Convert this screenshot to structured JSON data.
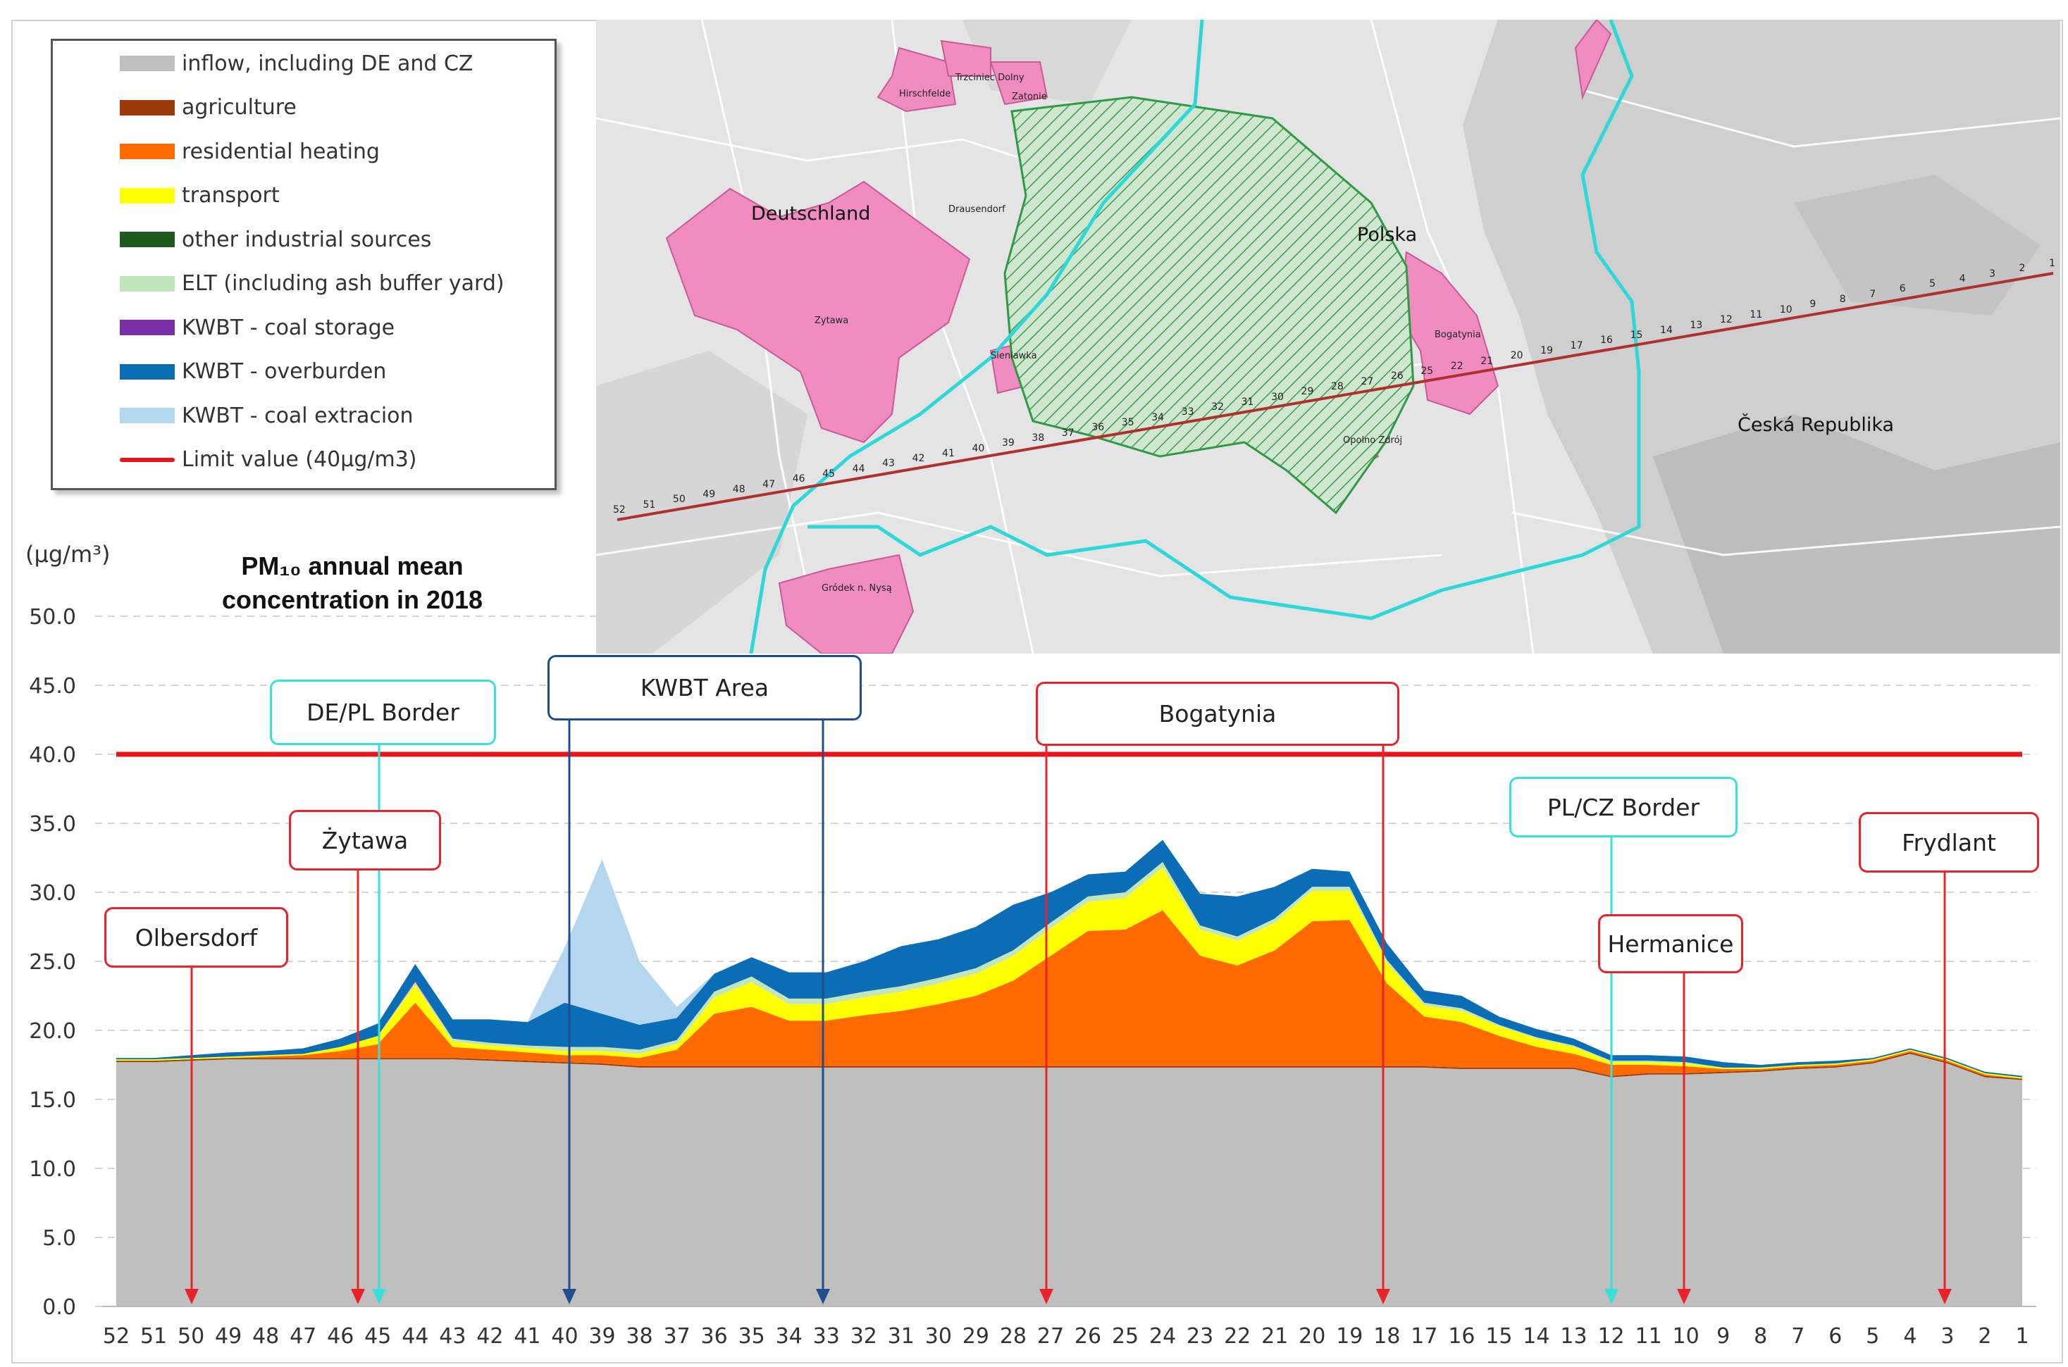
{
  "units": "(µg/m³)",
  "title": {
    "line1": "PM₁₀ annual mean",
    "line2": "concentration in 2018"
  },
  "legend": [
    {
      "label": "inflow, including DE and CZ",
      "color": "#bfbfbf",
      "kind": "area"
    },
    {
      "label": "agriculture",
      "color": "#9b3b0c",
      "kind": "area"
    },
    {
      "label": "residential heating",
      "color": "#ff6a00",
      "kind": "area"
    },
    {
      "label": "transport",
      "color": "#ffff00",
      "kind": "area"
    },
    {
      "label": "other industrial sources",
      "color": "#1e5a1e",
      "kind": "area"
    },
    {
      "label": "ELT (including ash buffer yard)",
      "color": "#c2e6bc",
      "kind": "area"
    },
    {
      "label": "KWBT - coal storage",
      "color": "#7b2fa6",
      "kind": "area"
    },
    {
      "label": "KWBT - overburden",
      "color": "#0b6db5",
      "kind": "area"
    },
    {
      "label": "KWBT - coal extracion",
      "color": "#b4d7ef",
      "kind": "area"
    },
    {
      "label": "Limit value (40µg/m3)",
      "color": "#e8141a",
      "kind": "line"
    }
  ],
  "callouts": [
    {
      "label": "Olbersdorf",
      "style": "red"
    },
    {
      "label": "Żytawa",
      "style": "red"
    },
    {
      "label": "DE/PL Border",
      "style": "cyan"
    },
    {
      "label": "KWBT Area",
      "style": "blue"
    },
    {
      "label": "Bogatynia",
      "style": "red"
    },
    {
      "label": "PL/CZ Border",
      "style": "cyan"
    },
    {
      "label": "Hermanice",
      "style": "red"
    },
    {
      "label": "Frydlant",
      "style": "red"
    }
  ],
  "map": {
    "labels": {
      "de": "Deutschland",
      "pl": "Polska",
      "cz": "Česká Republika"
    },
    "towns": [
      "Zytawa",
      "Sieniawka",
      "Hirschfelde",
      "Trzciniec Dolny",
      "Zatonie",
      "Drausendorf",
      "Bogatynia",
      "Opolno Zdrój",
      "Gródek n. Nysą"
    ],
    "route_points": [
      "52",
      "51",
      "50",
      "49",
      "48",
      "47",
      "46",
      "45",
      "44",
      "43",
      "42",
      "41",
      "40",
      "39",
      "38",
      "37",
      "36",
      "35",
      "34",
      "33",
      "32",
      "31",
      "30",
      "29",
      "28",
      "27",
      "26",
      "25",
      "22",
      "21",
      "20",
      "19",
      "17",
      "16",
      "15",
      "14",
      "13",
      "12",
      "11",
      "10",
      "9",
      "8",
      "7",
      "6",
      "5",
      "4",
      "3",
      "2",
      "1"
    ]
  },
  "chart_data": {
    "type": "area",
    "stacked": true,
    "categories": [
      "52",
      "51",
      "50",
      "49",
      "48",
      "47",
      "46",
      "45",
      "44",
      "43",
      "42",
      "41",
      "40",
      "39",
      "38",
      "37",
      "36",
      "35",
      "34",
      "33",
      "32",
      "31",
      "30",
      "29",
      "28",
      "27",
      "26",
      "25",
      "24",
      "23",
      "22",
      "21",
      "20",
      "19",
      "18",
      "17",
      "16",
      "15",
      "14",
      "13",
      "12",
      "11",
      "10",
      "9",
      "8",
      "7",
      "6",
      "5",
      "4",
      "3",
      "2",
      "1"
    ],
    "ylim": [
      0,
      50
    ],
    "yticks": [
      "0.0",
      "5.0",
      "10.0",
      "15.0",
      "20.0",
      "25.0",
      "30.0",
      "35.0",
      "40.0",
      "45.0",
      "50.0"
    ],
    "limit_value": 40,
    "grid": true,
    "legend_position": "top-left",
    "series": [
      {
        "name": "inflow, including DE and CZ",
        "color": "#bfbfbf",
        "values": [
          17.7,
          17.7,
          17.8,
          17.9,
          17.9,
          17.9,
          17.9,
          17.9,
          17.9,
          17.9,
          17.8,
          17.7,
          17.6,
          17.5,
          17.3,
          17.3,
          17.3,
          17.3,
          17.3,
          17.3,
          17.3,
          17.3,
          17.3,
          17.3,
          17.3,
          17.3,
          17.3,
          17.3,
          17.3,
          17.3,
          17.3,
          17.3,
          17.3,
          17.3,
          17.3,
          17.3,
          17.2,
          17.2,
          17.2,
          17.2,
          16.6,
          16.8,
          16.8,
          16.9,
          17.0,
          17.2,
          17.3,
          17.6,
          18.3,
          17.6,
          16.6,
          16.4
        ]
      },
      {
        "name": "agriculture",
        "color": "#9b3b0c",
        "values": [
          0.1,
          0.1,
          0.1,
          0.1,
          0.1,
          0.1,
          0.1,
          0.1,
          0.1,
          0.1,
          0.1,
          0.1,
          0.1,
          0.1,
          0.1,
          0.1,
          0.1,
          0.1,
          0.1,
          0.1,
          0.1,
          0.1,
          0.1,
          0.1,
          0.1,
          0.1,
          0.1,
          0.1,
          0.1,
          0.1,
          0.1,
          0.1,
          0.1,
          0.1,
          0.1,
          0.1,
          0.1,
          0.1,
          0.1,
          0.1,
          0.1,
          0.1,
          0.1,
          0.1,
          0.1,
          0.1,
          0.1,
          0.1,
          0.1,
          0.1,
          0.1,
          0.1
        ]
      },
      {
        "name": "residential heating",
        "color": "#ff6a00",
        "values": [
          0.0,
          0.0,
          0.0,
          0.0,
          0.1,
          0.2,
          0.5,
          1.0,
          4.0,
          0.8,
          0.7,
          0.6,
          0.5,
          0.6,
          0.6,
          1.2,
          3.8,
          4.3,
          3.3,
          3.3,
          3.7,
          4.0,
          4.5,
          5.1,
          6.2,
          8.0,
          9.8,
          9.9,
          11.3,
          8.0,
          7.3,
          8.4,
          10.5,
          10.6,
          6.0,
          3.6,
          3.3,
          2.3,
          1.5,
          1.0,
          0.8,
          0.6,
          0.5,
          0.2,
          0.1,
          0.1,
          0.1,
          0.1,
          0.1,
          0.1,
          0.1,
          0.0
        ]
      },
      {
        "name": "transport",
        "color": "#ffff00",
        "values": [
          0.1,
          0.1,
          0.1,
          0.1,
          0.1,
          0.1,
          0.3,
          0.6,
          1.3,
          0.4,
          0.3,
          0.3,
          0.3,
          0.3,
          0.3,
          0.4,
          1.2,
          1.8,
          1.2,
          1.2,
          1.3,
          1.4,
          1.5,
          1.6,
          1.8,
          2.0,
          2.1,
          2.3,
          3.1,
          1.9,
          1.8,
          2.0,
          2.2,
          2.1,
          1.5,
          0.8,
          0.8,
          0.7,
          0.6,
          0.5,
          0.2,
          0.2,
          0.2,
          0.1,
          0.1,
          0.1,
          0.1,
          0.1,
          0.1,
          0.1,
          0.1,
          0.1
        ]
      },
      {
        "name": "other industrial sources",
        "color": "#1e5a1e",
        "values": [
          0.0,
          0.0,
          0.0,
          0.0,
          0.0,
          0.0,
          0.0,
          0.0,
          0.0,
          0.0,
          0.0,
          0.0,
          0.0,
          0.0,
          0.0,
          0.0,
          0.0,
          0.0,
          0.0,
          0.0,
          0.0,
          0.0,
          0.0,
          0.0,
          0.0,
          0.0,
          0.0,
          0.0,
          0.0,
          0.0,
          0.0,
          0.0,
          0.0,
          0.0,
          0.0,
          0.0,
          0.0,
          0.0,
          0.0,
          0.0,
          0.0,
          0.0,
          0.0,
          0.0,
          0.0,
          0.0,
          0.0,
          0.0,
          0.0,
          0.0,
          0.0,
          0.0
        ]
      },
      {
        "name": "ELT (including ash buffer yard)",
        "color": "#c2e6bc",
        "values": [
          0.0,
          0.0,
          0.0,
          0.0,
          0.0,
          0.0,
          0.0,
          0.0,
          0.2,
          0.2,
          0.2,
          0.2,
          0.3,
          0.3,
          0.3,
          0.3,
          0.4,
          0.4,
          0.4,
          0.4,
          0.4,
          0.4,
          0.4,
          0.4,
          0.4,
          0.4,
          0.4,
          0.4,
          0.4,
          0.3,
          0.3,
          0.3,
          0.3,
          0.3,
          0.2,
          0.2,
          0.2,
          0.1,
          0.1,
          0.1,
          0.1,
          0.1,
          0.1,
          0.0,
          0.0,
          0.0,
          0.0,
          0.0,
          0.0,
          0.0,
          0.0,
          0.0
        ]
      },
      {
        "name": "KWBT - coal storage",
        "color": "#7b2fa6",
        "values": [
          0.0,
          0.0,
          0.0,
          0.0,
          0.0,
          0.0,
          0.0,
          0.0,
          0.1,
          0.0,
          0.0,
          0.0,
          0.0,
          0.0,
          0.0,
          0.0,
          0.0,
          0.0,
          0.0,
          0.0,
          0.0,
          0.0,
          0.0,
          0.0,
          0.0,
          0.0,
          0.0,
          0.0,
          0.0,
          0.0,
          0.0,
          0.0,
          0.0,
          0.0,
          0.0,
          0.0,
          0.0,
          0.0,
          0.0,
          0.0,
          0.0,
          0.0,
          0.0,
          0.0,
          0.0,
          0.0,
          0.0,
          0.0,
          0.0,
          0.0,
          0.0,
          0.0
        ]
      },
      {
        "name": "KWBT - overburden",
        "color": "#0b6db5",
        "values": [
          0.1,
          0.1,
          0.2,
          0.3,
          0.3,
          0.4,
          0.6,
          0.9,
          1.2,
          1.4,
          1.7,
          1.7,
          3.2,
          2.4,
          1.8,
          1.6,
          1.3,
          1.4,
          1.9,
          1.9,
          2.2,
          2.9,
          2.8,
          3.0,
          3.3,
          2.2,
          1.6,
          1.5,
          1.6,
          2.3,
          2.9,
          2.3,
          1.3,
          1.1,
          1.2,
          0.9,
          0.9,
          0.6,
          0.6,
          0.5,
          0.4,
          0.4,
          0.4,
          0.4,
          0.2,
          0.2,
          0.2,
          0.1,
          0.1,
          0.1,
          0.1,
          0.1
        ]
      },
      {
        "name": "KWBT - coal extracion",
        "color": "#b4d7ef",
        "values": [
          0.0,
          0.0,
          0.0,
          0.0,
          0.0,
          0.0,
          0.0,
          0.0,
          0.0,
          0.0,
          0.0,
          0.0,
          4.0,
          11.2,
          4.6,
          0.8,
          0.0,
          0.0,
          0.0,
          0.0,
          0.0,
          0.0,
          0.0,
          0.0,
          0.0,
          0.0,
          0.0,
          0.0,
          0.0,
          0.0,
          0.0,
          0.0,
          0.0,
          0.0,
          0.0,
          0.0,
          0.0,
          0.0,
          0.0,
          0.0,
          0.0,
          0.0,
          0.0,
          0.0,
          0.0,
          0.0,
          0.0,
          0.0,
          0.0,
          0.0,
          0.0,
          0.0
        ]
      }
    ]
  }
}
